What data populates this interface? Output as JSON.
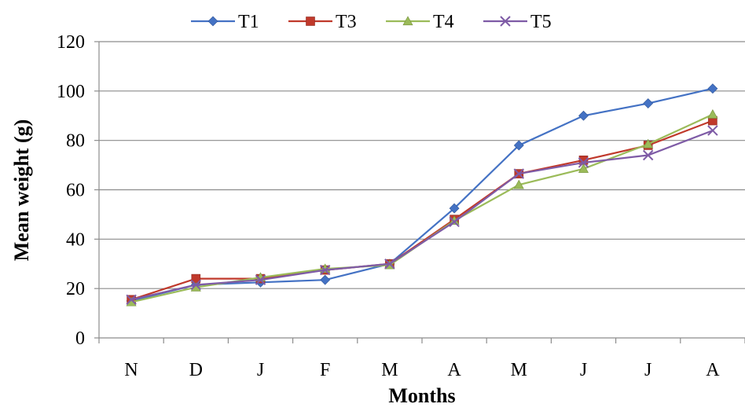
{
  "chart_data": {
    "type": "line",
    "title": "",
    "xlabel": "Months",
    "ylabel": "Mean weight (g)",
    "ylim": [
      0,
      120
    ],
    "yticks": [
      "0",
      "20",
      "40",
      "60",
      "80",
      "100",
      "120"
    ],
    "categories": [
      "N",
      "D",
      "J",
      "F",
      "M",
      "A",
      "M",
      "J",
      "J",
      "A"
    ],
    "grid": true,
    "legend_position": "top",
    "series": [
      {
        "name": "T1",
        "color": "#4472C4",
        "marker": "diamond",
        "values": [
          15,
          21.5,
          22.5,
          23.5,
          30,
          52.5,
          78,
          90,
          95,
          101
        ]
      },
      {
        "name": "T3",
        "color": "#C0392B",
        "marker": "square",
        "values": [
          15.5,
          24,
          24,
          27.5,
          30,
          48,
          66.5,
          72,
          78,
          88
        ]
      },
      {
        "name": "T4",
        "color": "#9BBB59",
        "marker": "triangle",
        "values": [
          14.5,
          20.5,
          24.5,
          28,
          29.5,
          47.5,
          62,
          68.5,
          78.5,
          90.5
        ]
      },
      {
        "name": "T5",
        "color": "#7E5BA6",
        "marker": "x",
        "values": [
          15.5,
          21.5,
          23.5,
          27.5,
          30,
          47,
          66.5,
          71,
          74,
          84
        ]
      }
    ]
  }
}
